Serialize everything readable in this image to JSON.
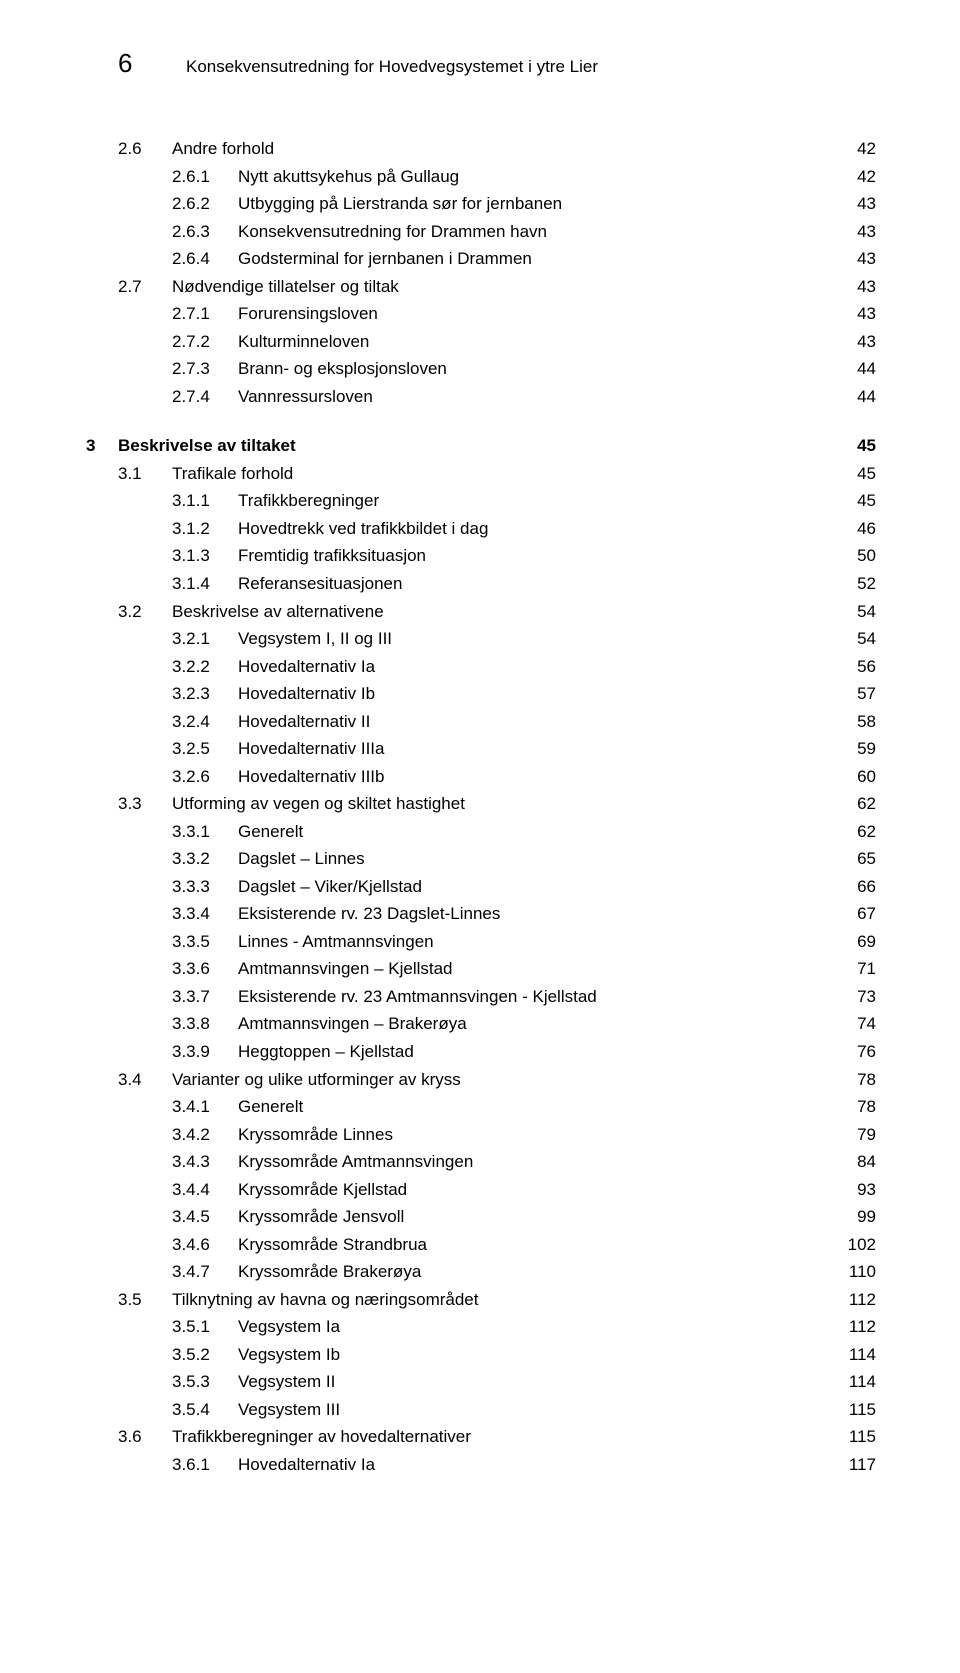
{
  "page_number": "6",
  "header_title": "Konsekvensutredning for Hovedvegsystemet i ytre Lier",
  "toc": [
    {
      "num": "2.6",
      "label": "Andre forhold",
      "page": "42",
      "level": 1,
      "bold": false
    },
    {
      "num": "2.6.1",
      "label": "Nytt akuttsykehus på Gullaug",
      "page": "42",
      "level": 2,
      "bold": false
    },
    {
      "num": "2.6.2",
      "label": "Utbygging på Lierstranda sør for jernbanen",
      "page": "43",
      "level": 2,
      "bold": false
    },
    {
      "num": "2.6.3",
      "label": "Konsekvensutredning for Drammen havn",
      "page": "43",
      "level": 2,
      "bold": false
    },
    {
      "num": "2.6.4",
      "label": "Godsterminal for jernbanen i Drammen",
      "page": "43",
      "level": 2,
      "bold": false
    },
    {
      "num": "2.7",
      "label": "Nødvendige tillatelser og tiltak",
      "page": "43",
      "level": 1,
      "bold": false
    },
    {
      "num": "2.7.1",
      "label": "Forurensingsloven",
      "page": "43",
      "level": 2,
      "bold": false
    },
    {
      "num": "2.7.2",
      "label": "Kulturminneloven",
      "page": "43",
      "level": 2,
      "bold": false
    },
    {
      "num": "2.7.3",
      "label": "Brann- og eksplosjonsloven",
      "page": "44",
      "level": 2,
      "bold": false
    },
    {
      "num": "2.7.4",
      "label": "Vannressursloven",
      "page": "44",
      "level": 2,
      "bold": false
    },
    {
      "num": "3",
      "label": "Beskrivelse av tiltaket",
      "page": "45",
      "level": 0,
      "bold": true,
      "gap": true
    },
    {
      "num": "3.1",
      "label": "Trafikale forhold",
      "page": "45",
      "level": 1,
      "bold": false
    },
    {
      "num": "3.1.1",
      "label": "Trafikkberegninger",
      "page": "45",
      "level": 2,
      "bold": false
    },
    {
      "num": "3.1.2",
      "label": "Hovedtrekk ved trafikkbildet i dag",
      "page": "46",
      "level": 2,
      "bold": false
    },
    {
      "num": "3.1.3",
      "label": "Fremtidig trafikksituasjon",
      "page": "50",
      "level": 2,
      "bold": false
    },
    {
      "num": "3.1.4",
      "label": "Referansesituasjonen",
      "page": "52",
      "level": 2,
      "bold": false
    },
    {
      "num": "3.2",
      "label": "Beskrivelse av alternativene",
      "page": "54",
      "level": 1,
      "bold": false
    },
    {
      "num": "3.2.1",
      "label": "Vegsystem I, II og III",
      "page": "54",
      "level": 2,
      "bold": false
    },
    {
      "num": "3.2.2",
      "label": "Hovedalternativ Ia",
      "page": "56",
      "level": 2,
      "bold": false
    },
    {
      "num": "3.2.3",
      "label": "Hovedalternativ Ib",
      "page": "57",
      "level": 2,
      "bold": false
    },
    {
      "num": "3.2.4",
      "label": "Hovedalternativ II",
      "page": "58",
      "level": 2,
      "bold": false
    },
    {
      "num": "3.2.5",
      "label": "Hovedalternativ IIIa",
      "page": "59",
      "level": 2,
      "bold": false
    },
    {
      "num": "3.2.6",
      "label": "Hovedalternativ IIIb",
      "page": "60",
      "level": 2,
      "bold": false
    },
    {
      "num": "3.3",
      "label": "Utforming av vegen og skiltet hastighet",
      "page": "62",
      "level": 1,
      "bold": false
    },
    {
      "num": "3.3.1",
      "label": "Generelt",
      "page": "62",
      "level": 2,
      "bold": false
    },
    {
      "num": "3.3.2",
      "label": "Dagslet – Linnes",
      "page": "65",
      "level": 2,
      "bold": false
    },
    {
      "num": "3.3.3",
      "label": "Dagslet – Viker/Kjellstad",
      "page": "66",
      "level": 2,
      "bold": false
    },
    {
      "num": "3.3.4",
      "label": "Eksisterende rv. 23 Dagslet-Linnes",
      "page": "67",
      "level": 2,
      "bold": false
    },
    {
      "num": "3.3.5",
      "label": "Linnes - Amtmannsvingen",
      "page": "69",
      "level": 2,
      "bold": false
    },
    {
      "num": "3.3.6",
      "label": "Amtmannsvingen – Kjellstad",
      "page": "71",
      "level": 2,
      "bold": false
    },
    {
      "num": "3.3.7",
      "label": "Eksisterende rv. 23 Amtmannsvingen - Kjellstad",
      "page": "73",
      "level": 2,
      "bold": false
    },
    {
      "num": "3.3.8",
      "label": "Amtmannsvingen – Brakerøya",
      "page": "74",
      "level": 2,
      "bold": false
    },
    {
      "num": "3.3.9",
      "label": "Heggtoppen – Kjellstad",
      "page": "76",
      "level": 2,
      "bold": false
    },
    {
      "num": "3.4",
      "label": "Varianter og ulike utforminger av kryss",
      "page": "78",
      "level": 1,
      "bold": false
    },
    {
      "num": "3.4.1",
      "label": "Generelt",
      "page": "78",
      "level": 2,
      "bold": false
    },
    {
      "num": "3.4.2",
      "label": "Kryssområde Linnes",
      "page": "79",
      "level": 2,
      "bold": false
    },
    {
      "num": "3.4.3",
      "label": "Kryssområde Amtmannsvingen",
      "page": "84",
      "level": 2,
      "bold": false
    },
    {
      "num": "3.4.4",
      "label": "Kryssområde Kjellstad",
      "page": "93",
      "level": 2,
      "bold": false
    },
    {
      "num": "3.4.5",
      "label": "Kryssområde Jensvoll",
      "page": "99",
      "level": 2,
      "bold": false
    },
    {
      "num": "3.4.6",
      "label": "Kryssområde Strandbrua",
      "page": "102",
      "level": 2,
      "bold": false
    },
    {
      "num": "3.4.7",
      "label": "Kryssområde Brakerøya",
      "page": "110",
      "level": 2,
      "bold": false
    },
    {
      "num": "3.5",
      "label": "Tilknytning av havna og næringsområdet",
      "page": "112",
      "level": 1,
      "bold": false
    },
    {
      "num": "3.5.1",
      "label": "Vegsystem Ia",
      "page": "112",
      "level": 2,
      "bold": false
    },
    {
      "num": "3.5.2",
      "label": "Vegsystem Ib",
      "page": "114",
      "level": 2,
      "bold": false
    },
    {
      "num": "3.5.3",
      "label": "Vegsystem II",
      "page": "114",
      "level": 2,
      "bold": false
    },
    {
      "num": "3.5.4",
      "label": "Vegsystem III",
      "page": "115",
      "level": 2,
      "bold": false
    },
    {
      "num": "3.6",
      "label": "Trafikkberegninger av hovedalternativer",
      "page": "115",
      "level": 1,
      "bold": false
    },
    {
      "num": "3.6.1",
      "label": "Hovedalternativ Ia",
      "page": "117",
      "level": 2,
      "bold": false
    }
  ]
}
